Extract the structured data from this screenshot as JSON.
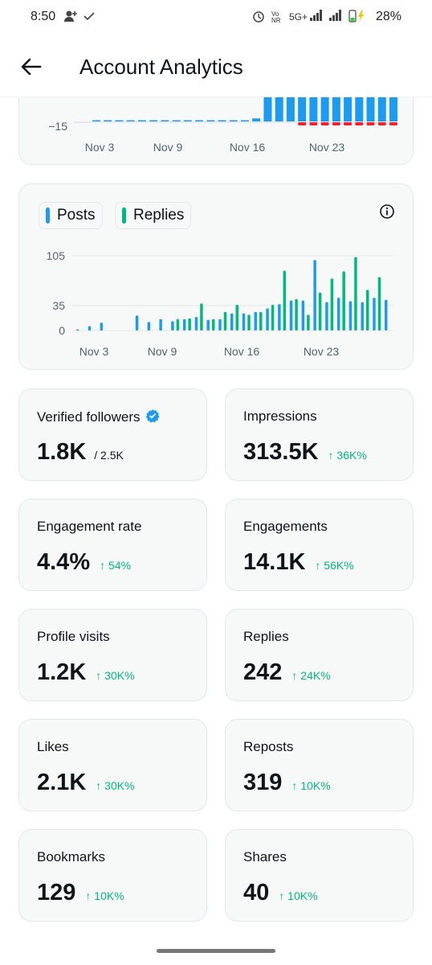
{
  "status_bar": {
    "time": "8:50",
    "network": "5G+",
    "battery": "28%"
  },
  "header": {
    "title": "Account Analytics"
  },
  "top_chart": {
    "tick_label": "−15",
    "x_labels": [
      "Nov 3",
      "Nov 9",
      "Nov 16",
      "Nov 23"
    ]
  },
  "posts_replies": {
    "legend": {
      "posts": "Posts",
      "replies": "Replies"
    },
    "y_labels": [
      "105",
      "35",
      "0"
    ],
    "x_labels": [
      "Nov 3",
      "Nov 9",
      "Nov 16",
      "Nov 23"
    ],
    "colors": {
      "posts": "#1d9bf0",
      "replies": "#00ba7c",
      "negative": "#f4212e"
    }
  },
  "chart_data": [
    {
      "type": "bar",
      "title": "",
      "categories": [
        "Nov 3",
        "Nov 4",
        "Nov 5",
        "Nov 6",
        "Nov 7",
        "Nov 8",
        "Nov 9",
        "Nov 10",
        "Nov 11",
        "Nov 12",
        "Nov 13",
        "Nov 14",
        "Nov 15",
        "Nov 16",
        "Nov 17",
        "Nov 18",
        "Nov 19",
        "Nov 20",
        "Nov 21",
        "Nov 22",
        "Nov 23",
        "Nov 24",
        "Nov 25",
        "Nov 26",
        "Nov 27",
        "Nov 28",
        "Nov 29"
      ],
      "series": [
        {
          "values": [
            0,
            0,
            0,
            0,
            0,
            0,
            0,
            1,
            0,
            1,
            0,
            1,
            1,
            1,
            5,
            40,
            40,
            40,
            40,
            40,
            40,
            40,
            40,
            40,
            40,
            40,
            40
          ]
        },
        {
          "values": [
            0,
            0,
            0,
            0,
            0,
            0,
            0,
            0,
            0,
            0,
            0,
            0,
            0,
            0,
            0,
            0,
            0,
            0,
            -1,
            -1,
            -1,
            -1,
            -1,
            -1,
            -1,
            -1,
            -1
          ]
        }
      ],
      "y_tick": -15
    },
    {
      "type": "bar",
      "title": "",
      "categories": [
        "Nov 3",
        "Nov 4",
        "Nov 5",
        "Nov 6",
        "Nov 7",
        "Nov 8",
        "Nov 9",
        "Nov 10",
        "Nov 11",
        "Nov 12",
        "Nov 13",
        "Nov 14",
        "Nov 15",
        "Nov 16",
        "Nov 17",
        "Nov 18",
        "Nov 19",
        "Nov 20",
        "Nov 21",
        "Nov 22",
        "Nov 23",
        "Nov 24",
        "Nov 25",
        "Nov 26",
        "Nov 27",
        "Nov 28",
        "Nov 29"
      ],
      "series": [
        {
          "name": "Posts",
          "values": [
            1,
            6,
            11,
            0,
            0,
            21,
            12,
            16,
            13,
            16,
            19,
            15,
            16,
            24,
            24,
            26,
            31,
            37,
            42,
            42,
            99,
            40,
            46,
            41,
            40,
            46,
            43
          ]
        },
        {
          "name": "Replies",
          "values": [
            0,
            0,
            0,
            0,
            0,
            0,
            0,
            0,
            16,
            17,
            38,
            16,
            26,
            36,
            22,
            26,
            36,
            84,
            44,
            22,
            53,
            73,
            83,
            103,
            57,
            75,
            0
          ]
        }
      ],
      "ylim": [
        0,
        105
      ],
      "yticks": [
        0,
        35,
        105
      ]
    }
  ],
  "stats": [
    {
      "label": "Verified followers",
      "value": "1.8K",
      "sub": "/ 2.5K",
      "change": ""
    },
    {
      "label": "Impressions",
      "value": "313.5K",
      "sub": "",
      "change": "↑ 36K%"
    },
    {
      "label": "Engagement rate",
      "value": "4.4%",
      "sub": "",
      "change": "↑ 54%"
    },
    {
      "label": "Engagements",
      "value": "14.1K",
      "sub": "",
      "change": "↑ 56K%"
    },
    {
      "label": "Profile visits",
      "value": "1.2K",
      "sub": "",
      "change": "↑ 30K%"
    },
    {
      "label": "Replies",
      "value": "242",
      "sub": "",
      "change": "↑ 24K%"
    },
    {
      "label": "Likes",
      "value": "2.1K",
      "sub": "",
      "change": "↑ 30K%"
    },
    {
      "label": "Reposts",
      "value": "319",
      "sub": "",
      "change": "↑ 10K%"
    },
    {
      "label": "Bookmarks",
      "value": "129",
      "sub": "",
      "change": "↑ 10K%"
    },
    {
      "label": "Shares",
      "value": "40",
      "sub": "",
      "change": "↑ 10K%"
    }
  ]
}
